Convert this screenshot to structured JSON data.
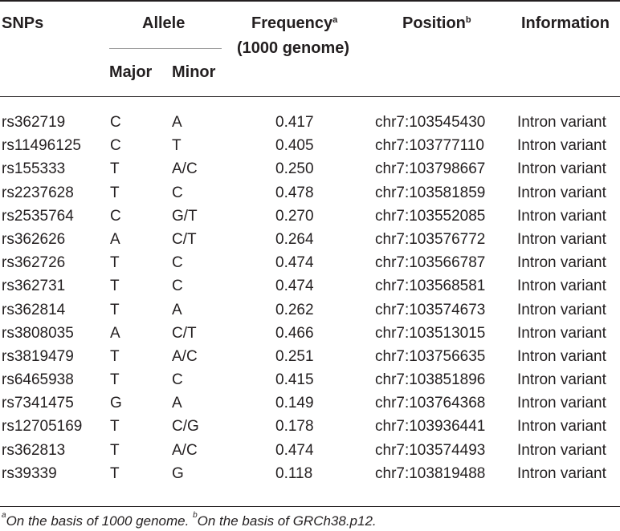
{
  "headers": {
    "snps": "SNPs",
    "allele": "Allele",
    "major": "Major",
    "minor": "Minor",
    "frequency": "Frequency",
    "frequency_mark": "a",
    "frequency_sub": "(1000 genome)",
    "position": "Position",
    "position_mark": "b",
    "information": "Information"
  },
  "rows": [
    {
      "snp": "rs362719",
      "major": "C",
      "minor": "A",
      "frequency": "0.417",
      "position": "chr7:103545430",
      "information": "Intron variant"
    },
    {
      "snp": "rs11496125",
      "major": "C",
      "minor": "T",
      "frequency": "0.405",
      "position": "chr7:103777110",
      "information": "Intron variant"
    },
    {
      "snp": "rs155333",
      "major": "T",
      "minor": "A/C",
      "frequency": "0.250",
      "position": "chr7:103798667",
      "information": "Intron variant"
    },
    {
      "snp": "rs2237628",
      "major": "T",
      "minor": "C",
      "frequency": "0.478",
      "position": "chr7:103581859",
      "information": "Intron variant"
    },
    {
      "snp": "rs2535764",
      "major": "C",
      "minor": "G/T",
      "frequency": "0.270",
      "position": "chr7:103552085",
      "information": "Intron variant"
    },
    {
      "snp": "rs362626",
      "major": "A",
      "minor": "C/T",
      "frequency": "0.264",
      "position": "chr7:103576772",
      "information": "Intron variant"
    },
    {
      "snp": "rs362726",
      "major": "T",
      "minor": "C",
      "frequency": "0.474",
      "position": "chr7:103566787",
      "information": "Intron variant"
    },
    {
      "snp": "rs362731",
      "major": "T",
      "minor": "C",
      "frequency": "0.474",
      "position": "chr7:103568581",
      "information": "Intron variant"
    },
    {
      "snp": "rs362814",
      "major": "T",
      "minor": "A",
      "frequency": "0.262",
      "position": "chr7:103574673",
      "information": "Intron variant"
    },
    {
      "snp": "rs3808035",
      "major": "A",
      "minor": "C/T",
      "frequency": "0.466",
      "position": "chr7:103513015",
      "information": "Intron variant"
    },
    {
      "snp": "rs3819479",
      "major": "T",
      "minor": "A/C",
      "frequency": "0.251",
      "position": "chr7:103756635",
      "information": "Intron variant"
    },
    {
      "snp": "rs6465938",
      "major": "T",
      "minor": "C",
      "frequency": "0.415",
      "position": "chr7:103851896",
      "information": "Intron variant"
    },
    {
      "snp": "rs7341475",
      "major": "G",
      "minor": "A",
      "frequency": "0.149",
      "position": "chr7:103764368",
      "information": "Intron variant"
    },
    {
      "snp": "rs12705169",
      "major": "T",
      "minor": "C/G",
      "frequency": "0.178",
      "position": "chr7:103936441",
      "information": "Intron variant"
    },
    {
      "snp": "rs362813",
      "major": "T",
      "minor": "A/C",
      "frequency": "0.474",
      "position": "chr7:103574493",
      "information": "Intron variant"
    },
    {
      "snp": "rs39339",
      "major": "T",
      "minor": "G",
      "frequency": "0.118",
      "position": "chr7:103819488",
      "information": "Intron variant"
    }
  ],
  "footnote": {
    "a_mark": "a",
    "a_text": "On the basis of 1000 genome. ",
    "b_mark": "b",
    "b_text": "On the basis of GRCh38.p12."
  }
}
